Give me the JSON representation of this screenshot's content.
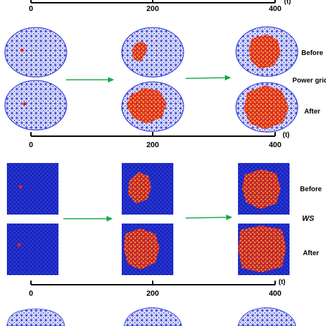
{
  "timeline": {
    "ticks": [
      "0",
      "200",
      "400"
    ],
    "unit": "(t)"
  },
  "rows": {
    "before": "Before",
    "after": "After"
  },
  "sections": [
    {
      "name": "Power grid",
      "italic": false
    },
    {
      "name": "WS",
      "italic": true
    }
  ],
  "colors": {
    "network_edges": "#1f2bd6",
    "arrow": "#17a84a",
    "cascade_red": "#e8231c",
    "cascade_orange": "#f5a623",
    "cascade_yellow": "#f2d21c"
  }
}
